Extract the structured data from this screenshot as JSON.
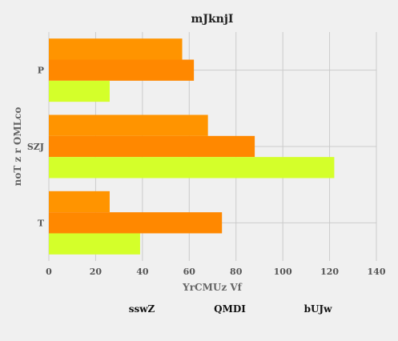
{
  "chart_data": {
    "type": "bar",
    "orientation": "horizontal",
    "title": "mJknjI",
    "xlabel": "YrCMUz  Vf",
    "ylabel": "noT  z r OMLco",
    "categories": [
      "P",
      "SZJ",
      "T"
    ],
    "series": [
      {
        "name": "sswZ",
        "color": "#ff9400",
        "values": [
          57,
          68,
          26
        ]
      },
      {
        "name": "QMDI",
        "color": "#ff8800",
        "values": [
          62,
          88,
          74
        ]
      },
      {
        "name": "bUJw",
        "color": "#d4ff2a",
        "values": [
          26,
          122,
          39
        ]
      }
    ],
    "xlim": [
      0,
      140
    ],
    "xticks": [
      0,
      20,
      40,
      60,
      80,
      100,
      120,
      140
    ],
    "grid": true,
    "legend_position": "bottom"
  }
}
